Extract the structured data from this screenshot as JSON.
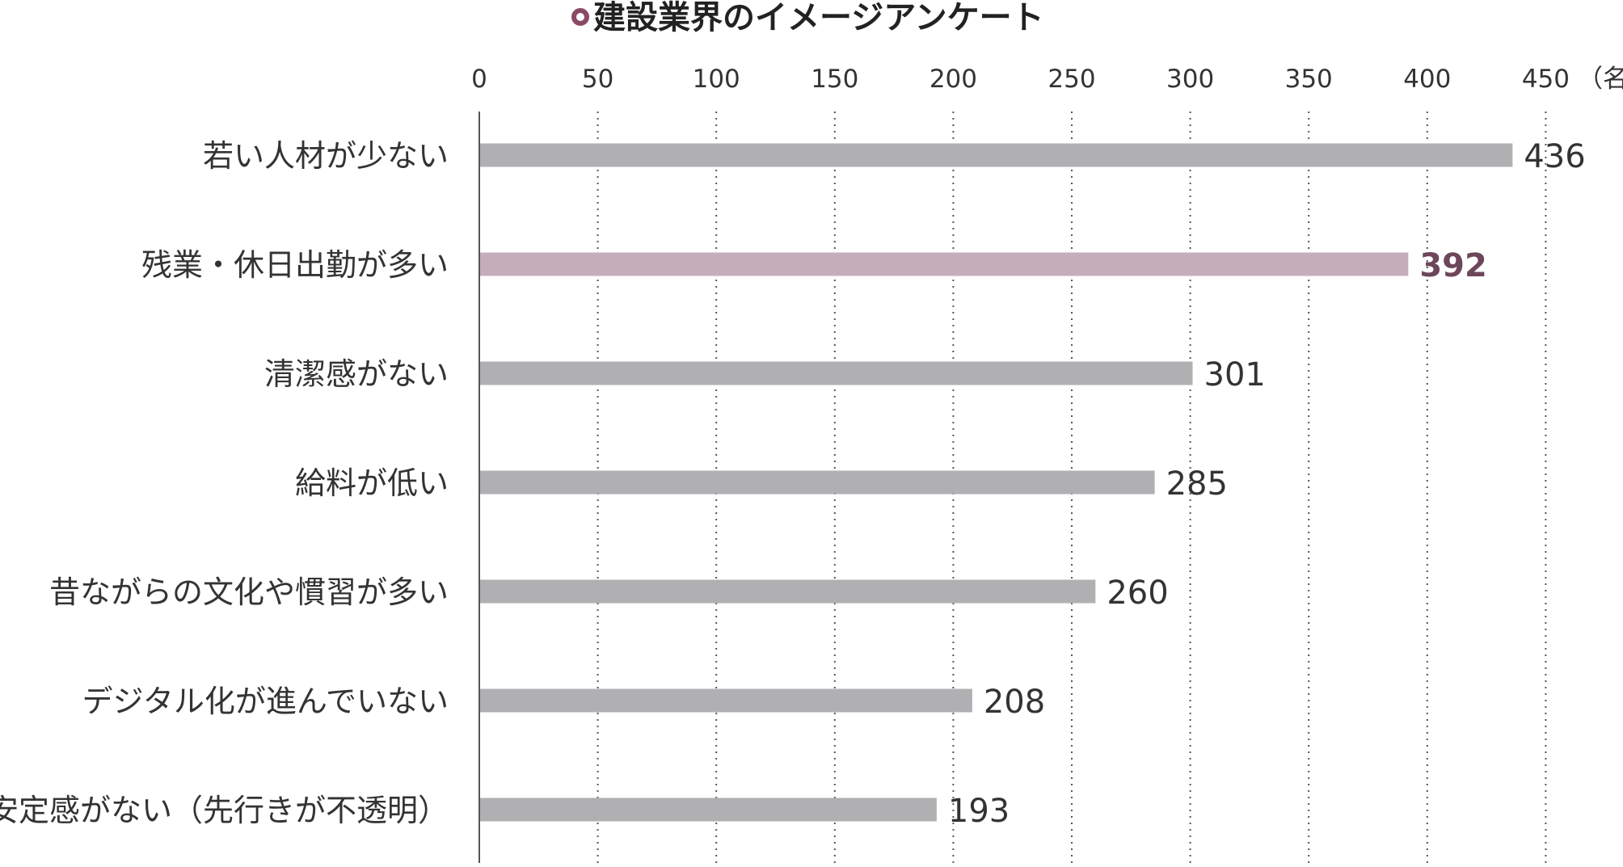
{
  "chart_data": {
    "type": "bar",
    "orientation": "horizontal",
    "title": "建設業界のイメージアンケート",
    "unit_label": "（名）",
    "xlim": [
      0,
      450
    ],
    "xticks": [
      0,
      50,
      100,
      150,
      200,
      250,
      300,
      350,
      400,
      450
    ],
    "grid": "vertical dotted",
    "categories": [
      "若い人材が少ない",
      "残業・休日出勤が多い",
      "清潔感がない",
      "給料が低い",
      "昔ながらの文化や慣習が多い",
      "デジタル化が進んでいない",
      "安定感がない（先行きが不透明）"
    ],
    "values": [
      436,
      392,
      301,
      285,
      260,
      208,
      193
    ],
    "highlight_index": 1,
    "colors": {
      "bar": "#b0b0b3",
      "highlight_bar": "#c5adb9",
      "highlight_text": "#6e4659",
      "title_marker": "#8a4a66",
      "axis": "#555555",
      "grid": "#555555"
    }
  }
}
